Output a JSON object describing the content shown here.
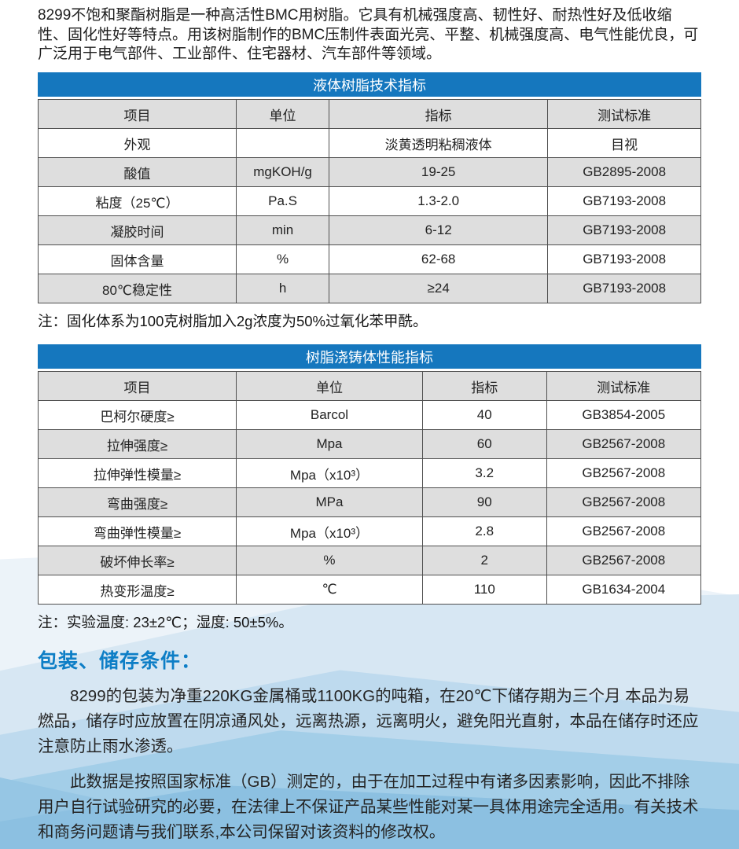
{
  "intro": "8299不饱和聚酯树脂是一种高活性BMC用树脂。它具有机械强度高、韧性好、耐热性好及低收缩性、固化性好等特点。用该树脂制作的BMC压制件表面光亮、平整、机械强度高、电气性能优良，可广泛用于电气部件、工业部件、住宅器材、汽车部件等领域。",
  "tables": [
    {
      "title": "液体树脂技术指标",
      "headers": [
        "项目",
        "单位",
        "指标",
        "测试标准"
      ],
      "col_widths": [
        "29.9%",
        "14.0%",
        "33.0%",
        "23.1%"
      ],
      "rows": [
        [
          "外观",
          "",
          "淡黄透明粘稠液体",
          "目视"
        ],
        [
          "酸值",
          "mgKOH/g",
          "19-25",
          "GB2895-2008"
        ],
        [
          "粘度（25℃）",
          "Pa.S",
          "1.3-2.0",
          "GB7193-2008"
        ],
        [
          "凝胶时间",
          "min",
          "6-12",
          "GB7193-2008"
        ],
        [
          "固体含量",
          "%",
          "62-68",
          "GB7193-2008"
        ],
        [
          "80℃稳定性",
          "h",
          "≥24",
          "GB7193-2008"
        ]
      ],
      "note": "注：固化体系为100克树脂加入2g浓度为50%过氧化苯甲酰。"
    },
    {
      "title": "树脂浇铸体性能指标",
      "headers": [
        "项目",
        "单位",
        "指标",
        "测试标准"
      ],
      "col_widths": [
        "29.9%",
        "28.1%",
        "18.7%",
        "23.3%"
      ],
      "rows": [
        [
          "巴柯尔硬度≥",
          "Barcol",
          "40",
          "GB3854-2005"
        ],
        [
          "拉伸强度≥",
          "Mpa",
          "60",
          "GB2567-2008"
        ],
        [
          "拉伸弹性模量≥",
          "Mpa（x10³）",
          "3.2",
          "GB2567-2008"
        ],
        [
          "弯曲强度≥",
          "MPa",
          "90",
          "GB2567-2008"
        ],
        [
          "弯曲弹性模量≥",
          "Mpa（x10³）",
          "2.8",
          "GB2567-2008"
        ],
        [
          "破坏伸长率≥",
          "%",
          "2",
          "GB2567-2008"
        ],
        [
          "热变形温度≥",
          "℃",
          "110",
          "GB1634-2004"
        ]
      ],
      "note": "注：实验温度: 23±2℃；湿度: 50±5%。"
    }
  ],
  "storage_section": {
    "heading": "包装、储存条件：",
    "paragraphs": [
      "8299的包装为净重220KG金属桶或1100KG的吨箱，在20℃下储存期为三个月 本品为易燃品，储存时应放置在阴凉通风处，远离热源，远离明火，避免阳光直射，本品在储存时还应注意防止雨水渗透。",
      "此数据是按照国家标准（GB）测定的，由于在加工过程中有诸多因素影响，因此不排除用户自行试验研究的必要，在法律上不保证产品某些性能对某一具体用途完全适用。有关技术和商务问题请与我们联系,本公司保留对该资料的修改权。"
    ]
  },
  "colors": {
    "table_title_bg": "#1577be",
    "header_row_bg": "#dedede",
    "alt_row_bg": "#dedede",
    "border": "#4f4f4f",
    "heading_text": "#0d7ec6",
    "wave_blues": [
      "#ecf3f9",
      "#d7e7f3",
      "#bedaee",
      "#a3cee8",
      "#8cc0e1"
    ]
  }
}
